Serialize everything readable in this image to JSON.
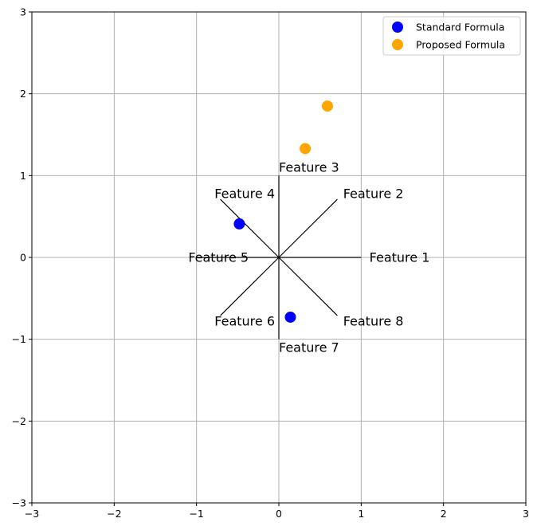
{
  "chart_data": {
    "type": "scatter",
    "title": "",
    "xlabel": "",
    "ylabel": "",
    "xlim": [
      -3,
      3
    ],
    "ylim": [
      -3,
      3
    ],
    "grid": true,
    "xticks": [
      -3,
      -2,
      -1,
      0,
      1,
      2,
      3
    ],
    "yticks": [
      -3,
      -2,
      -1,
      0,
      1,
      2,
      3
    ],
    "xtick_labels": [
      "−3",
      "−2",
      "−1",
      "0",
      "1",
      "2",
      "3"
    ],
    "ytick_labels": [
      "−3",
      "−2",
      "−1",
      "0",
      "1",
      "2",
      "3"
    ],
    "legend_position": "top-right",
    "series": [
      {
        "name": "Standard Formula",
        "color": "#0000ff",
        "points": [
          [
            -0.48,
            0.41
          ],
          [
            0.14,
            -0.73
          ]
        ]
      },
      {
        "name": "Proposed Formula",
        "color": "#ffa500",
        "points": [
          [
            0.59,
            1.85
          ],
          [
            0.32,
            1.33
          ]
        ]
      }
    ],
    "feature_axes": [
      {
        "label": "Feature 1",
        "end": [
          1.0,
          0.0
        ]
      },
      {
        "label": "Feature 2",
        "end": [
          0.71,
          0.71
        ]
      },
      {
        "label": "Feature 3",
        "end": [
          0.0,
          1.0
        ]
      },
      {
        "label": "Feature 4",
        "end": [
          -0.71,
          0.71
        ]
      },
      {
        "label": "Feature 5",
        "end": [
          -1.0,
          0.0
        ]
      },
      {
        "label": "Feature 6",
        "end": [
          -0.71,
          -0.71
        ]
      },
      {
        "label": "Feature 7",
        "end": [
          0.0,
          -1.0
        ]
      },
      {
        "label": "Feature 8",
        "end": [
          0.71,
          -0.71
        ]
      }
    ]
  }
}
